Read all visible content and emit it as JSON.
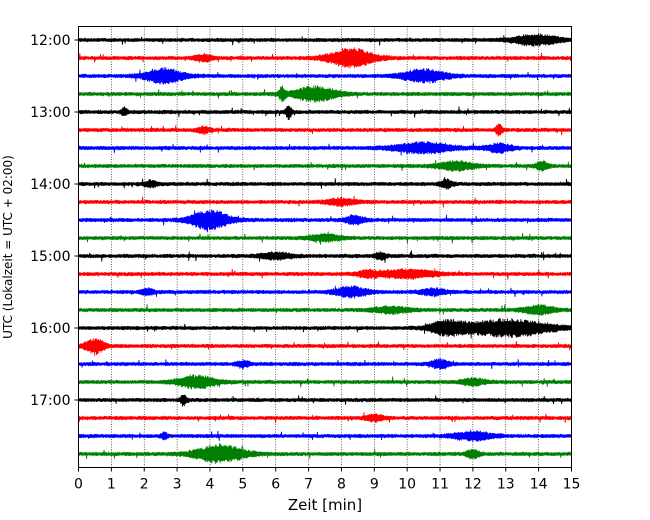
{
  "chart_data": {
    "type": "line",
    "title": "",
    "xlabel": "Zeit  [min]",
    "ylabel": "UTC (Lokalzeit = UTC + 02:00)",
    "xlim": [
      0,
      15
    ],
    "x_ticks": [
      0,
      1,
      2,
      3,
      4,
      5,
      6,
      7,
      8,
      9,
      10,
      11,
      12,
      13,
      14,
      15
    ],
    "x_tick_labels": [
      "0",
      "1",
      "2",
      "3",
      "4",
      "5",
      "6",
      "7",
      "8",
      "9",
      "10",
      "11",
      "12",
      "13",
      "14",
      "15"
    ],
    "y_tick_labels": [
      "12:00",
      "13:00",
      "14:00",
      "15:00",
      "16:00",
      "17:00"
    ],
    "vertical_grid": true,
    "trace_minutes": 15,
    "color_cycle": [
      "#000000",
      "#ff0000",
      "#0000ff",
      "#008000"
    ],
    "series": [
      {
        "start": "12:00",
        "events": [
          [
            13.9,
            0.7,
            5
          ]
        ]
      },
      {
        "start": "12:15",
        "events": [
          [
            8.3,
            0.7,
            9
          ],
          [
            3.8,
            0.3,
            3
          ]
        ]
      },
      {
        "start": "12:30",
        "events": [
          [
            2.6,
            0.6,
            7
          ],
          [
            10.5,
            0.7,
            6
          ]
        ]
      },
      {
        "start": "12:45",
        "events": [
          [
            7.2,
            0.7,
            7
          ],
          [
            6.2,
            0.1,
            6
          ]
        ]
      },
      {
        "start": "13:00",
        "events": [
          [
            6.4,
            0.1,
            6
          ],
          [
            1.4,
            0.1,
            4
          ]
        ]
      },
      {
        "start": "13:15",
        "events": [
          [
            12.8,
            0.1,
            5
          ],
          [
            3.8,
            0.2,
            3
          ]
        ]
      },
      {
        "start": "13:30",
        "events": [
          [
            10.5,
            0.9,
            5
          ],
          [
            12.8,
            0.4,
            4
          ]
        ]
      },
      {
        "start": "13:45",
        "events": [
          [
            11.5,
            0.6,
            4
          ],
          [
            14.1,
            0.2,
            4
          ]
        ]
      },
      {
        "start": "14:00",
        "events": [
          [
            11.2,
            0.2,
            4
          ],
          [
            2.2,
            0.2,
            3
          ]
        ]
      },
      {
        "start": "14:15",
        "events": [
          [
            8.0,
            0.5,
            3
          ]
        ]
      },
      {
        "start": "14:30",
        "events": [
          [
            4.0,
            0.6,
            9
          ],
          [
            8.4,
            0.3,
            4
          ]
        ]
      },
      {
        "start": "14:45",
        "events": [
          [
            7.5,
            0.5,
            3
          ]
        ]
      },
      {
        "start": "15:00",
        "events": [
          [
            6.0,
            0.5,
            3
          ],
          [
            9.2,
            0.2,
            3
          ]
        ]
      },
      {
        "start": "15:15",
        "events": [
          [
            10.0,
            0.9,
            4
          ],
          [
            8.8,
            0.3,
            3
          ]
        ]
      },
      {
        "start": "15:30",
        "events": [
          [
            8.3,
            0.5,
            5
          ],
          [
            2.1,
            0.2,
            3
          ],
          [
            10.8,
            0.4,
            3
          ]
        ]
      },
      {
        "start": "15:45",
        "events": [
          [
            14.0,
            0.5,
            4
          ],
          [
            9.5,
            0.6,
            3
          ]
        ]
      },
      {
        "start": "16:00",
        "events": [
          [
            13.0,
            1.4,
            8
          ],
          [
            11.2,
            0.5,
            6
          ]
        ]
      },
      {
        "start": "16:15",
        "events": [
          [
            0.5,
            0.3,
            7
          ]
        ]
      },
      {
        "start": "16:30",
        "events": [
          [
            11.0,
            0.3,
            4
          ],
          [
            5.0,
            0.2,
            3
          ]
        ]
      },
      {
        "start": "16:45",
        "events": [
          [
            3.6,
            0.6,
            6
          ],
          [
            12.0,
            0.4,
            3
          ]
        ]
      },
      {
        "start": "17:00",
        "events": [
          [
            3.2,
            0.1,
            5
          ]
        ]
      },
      {
        "start": "17:15",
        "events": [
          [
            9.0,
            0.3,
            3
          ]
        ]
      },
      {
        "start": "17:30",
        "events": [
          [
            12.0,
            0.6,
            4
          ],
          [
            2.6,
            0.1,
            3
          ]
        ]
      },
      {
        "start": "17:45",
        "events": [
          [
            4.3,
            0.8,
            8
          ],
          [
            12.0,
            0.2,
            4
          ]
        ]
      }
    ]
  }
}
